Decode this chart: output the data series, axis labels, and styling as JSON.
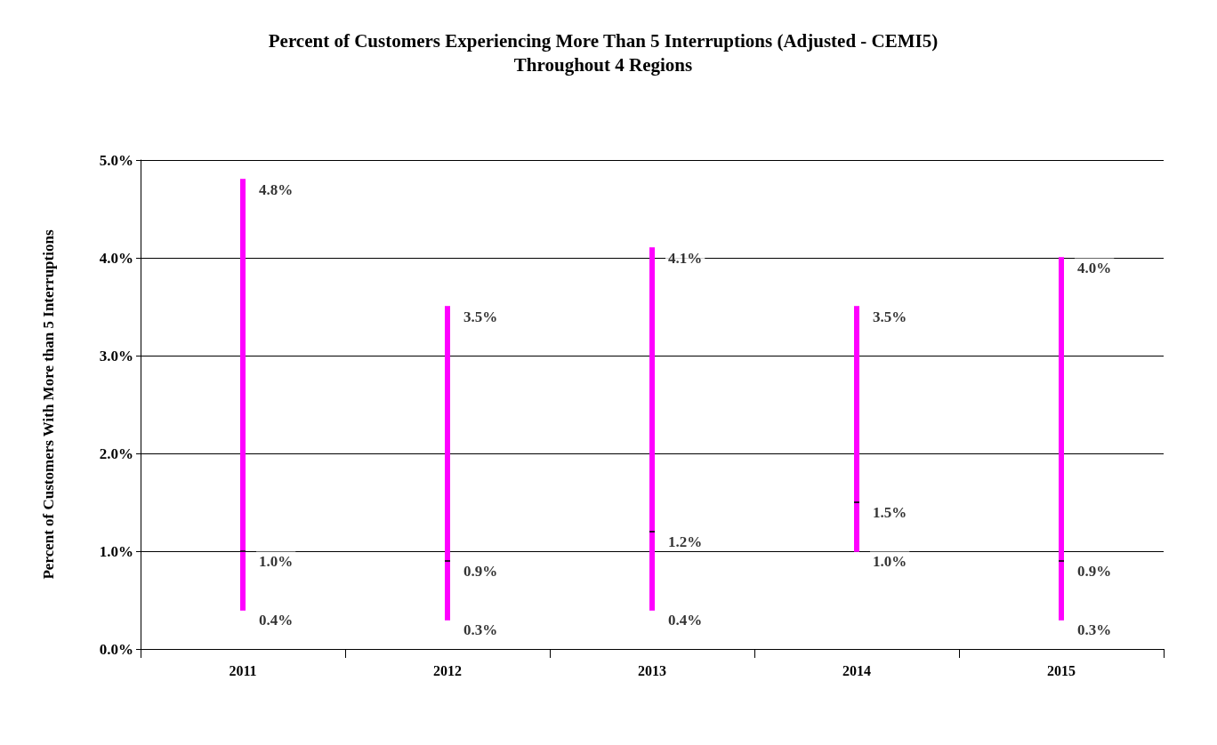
{
  "chart_data": {
    "type": "bar",
    "title": "Percent of Customers Experiencing More Than 5 Interruptions (Adjusted - CEMI5)",
    "subtitle": "Throughout 4 Regions",
    "ylabel": "Percent of Customers With More than 5 Interruptions",
    "categories": [
      "2011",
      "2012",
      "2013",
      "2014",
      "2015"
    ],
    "series": [
      {
        "color": "#ff00ff",
        "base": [
          0.4,
          0.3,
          0.4,
          1.0,
          0.3
        ],
        "values": [
          4.4,
          3.2,
          3.7,
          2.5,
          3.7
        ]
      },
      {
        "type": "scatter",
        "color": "#ff00ff",
        "values": [
          4.8,
          3.5,
          4.1,
          3.5,
          4.0
        ],
        "value_labels": [
          "4.8%",
          "3.5%",
          "4.1%",
          "3.5%",
          "4.0%"
        ]
      },
      {
        "type": "scatter",
        "color": "#000000",
        "values": [
          1.0,
          0.9,
          1.2,
          1.5,
          0.9
        ],
        "value_labels": [
          "1.0%",
          "0.9%",
          "1.2%",
          "1.5%",
          "0.9%"
        ]
      },
      {
        "type": "scatter",
        "color": "#ff00ff",
        "values": [
          0.4,
          0.3,
          0.4,
          1.0,
          0.3
        ],
        "value_labels": [
          "0.4%",
          "0.3%",
          "0.4%",
          "1.0%",
          "0.3%"
        ]
      }
    ],
    "ylim": [
      0,
      5
    ],
    "yticks": [
      {
        "value": 0,
        "label": "0.0%"
      },
      {
        "value": 1,
        "label": "1.0%"
      },
      {
        "value": 2,
        "label": "2.0%"
      },
      {
        "value": 3,
        "label": "3.0%"
      },
      {
        "value": 4,
        "label": "4.0%"
      },
      {
        "value": 5,
        "label": "5.0%"
      }
    ],
    "grid": "y"
  }
}
